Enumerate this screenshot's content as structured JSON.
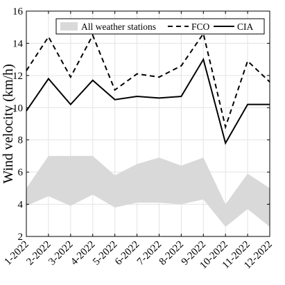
{
  "chart_data": {
    "type": "line",
    "categories": [
      "1-2022",
      "2-2022",
      "3-2022",
      "4-2022",
      "5-2022",
      "6-2022",
      "7-2022",
      "8-2022",
      "9-2022",
      "10-2022",
      "11-2022",
      "12-2022"
    ],
    "ylabel": "Wind velocity (km/h)",
    "xlabel": "",
    "title": "",
    "ylim": [
      2,
      16
    ],
    "yticks": [
      2,
      4,
      6,
      8,
      10,
      12,
      14,
      16
    ],
    "grid": true,
    "legend_position": "top",
    "band": {
      "name": "All weather stations",
      "color": "#d9d9d9",
      "upper": [
        5.0,
        7.0,
        7.0,
        7.0,
        5.8,
        6.5,
        6.9,
        6.4,
        6.9,
        4.0,
        5.9,
        5.0
      ],
      "lower": [
        3.9,
        4.5,
        3.9,
        4.6,
        3.8,
        4.1,
        4.1,
        4.0,
        4.3,
        2.6,
        3.7,
        2.6
      ]
    },
    "series": [
      {
        "name": "FCO",
        "color": "#000000",
        "dash": "dashed",
        "values": [
          12.3,
          14.4,
          11.9,
          14.5,
          11.1,
          12.1,
          11.9,
          12.6,
          14.6,
          8.8,
          12.9,
          11.6
        ]
      },
      {
        "name": "CIA",
        "color": "#000000",
        "dash": "solid",
        "values": [
          9.8,
          11.8,
          10.2,
          11.7,
          10.5,
          10.7,
          10.6,
          10.7,
          13.0,
          7.8,
          10.2,
          10.2
        ]
      }
    ]
  }
}
